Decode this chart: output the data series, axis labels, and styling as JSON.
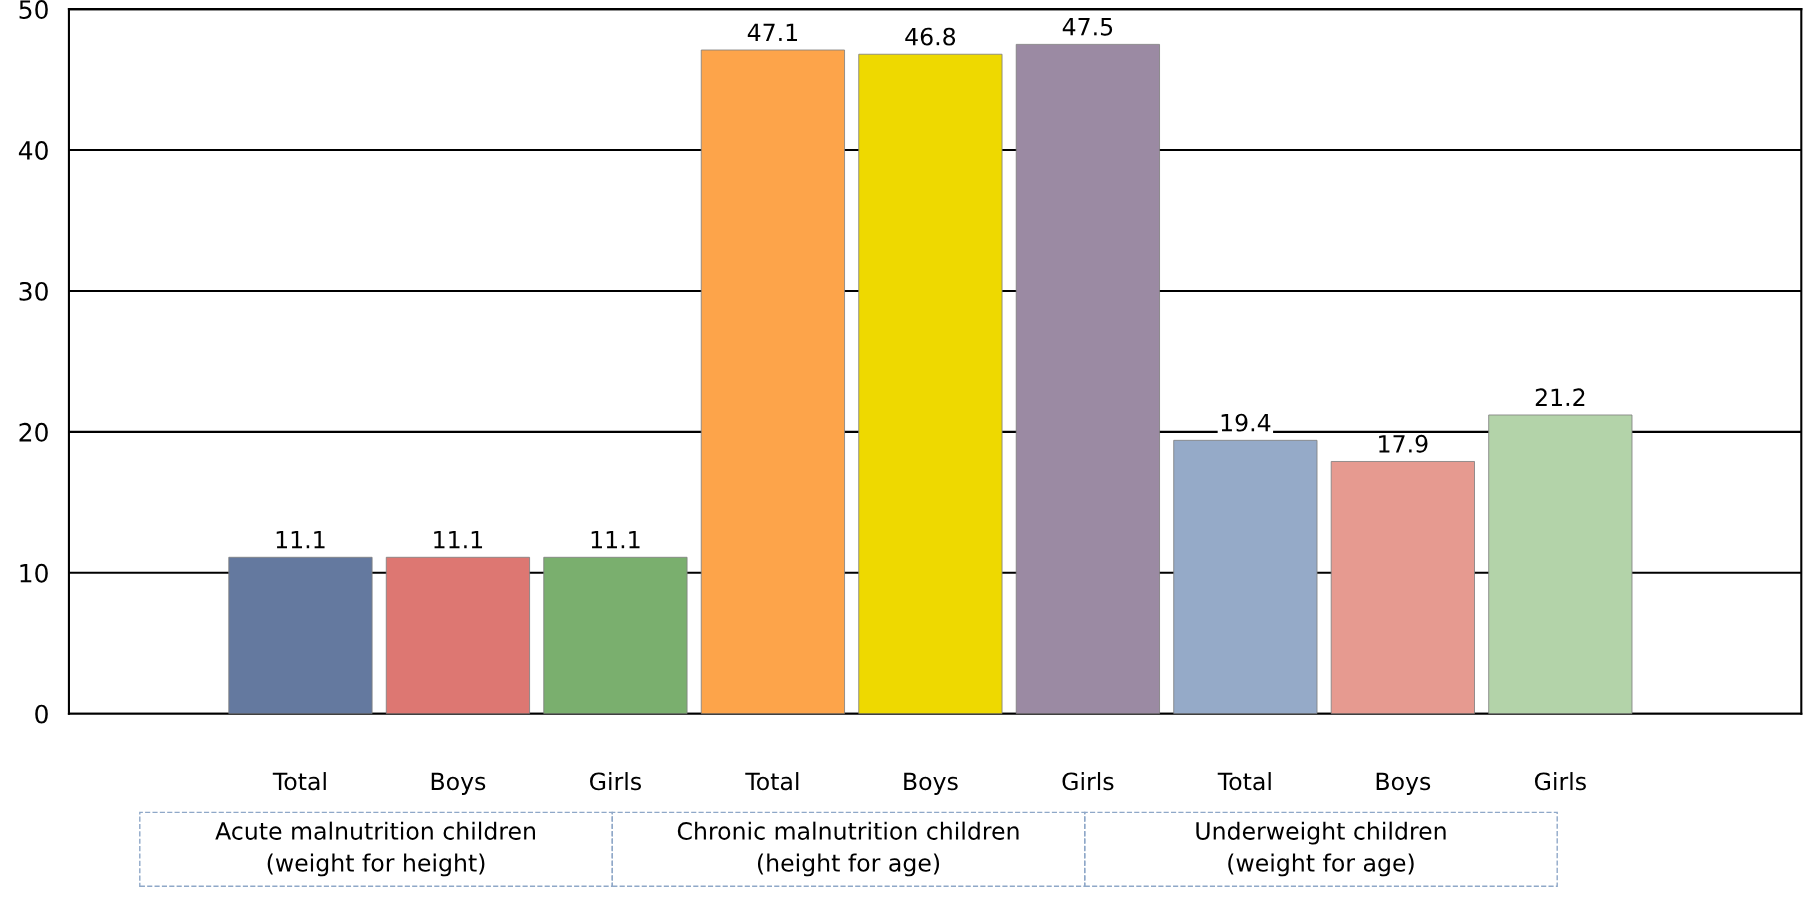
{
  "chart_data": {
    "type": "bar",
    "categories": [
      "Total",
      "Boys",
      "Girls",
      "Total",
      "Boys",
      "Girls",
      "Total",
      "Boys",
      "Girls"
    ],
    "values": [
      11.1,
      11.1,
      11.1,
      47.1,
      46.8,
      47.5,
      19.4,
      17.9,
      21.2
    ],
    "colors": [
      "#64799f",
      "#dd7772",
      "#7aaf6e",
      "#fda44a",
      "#eed900",
      "#9b8aa3",
      "#95aac8",
      "#e69a90",
      "#b3d3a9"
    ],
    "data_labels": true,
    "ylim": [
      0,
      50
    ],
    "yticks": [
      0,
      10,
      20,
      30,
      40,
      50
    ],
    "grid": "y",
    "annotations": [
      "Acute malnutrition children\n(weight for height)",
      "Chronic malnutrition children\n(height for age)",
      "Underweight children\n(weight for age)"
    ]
  }
}
